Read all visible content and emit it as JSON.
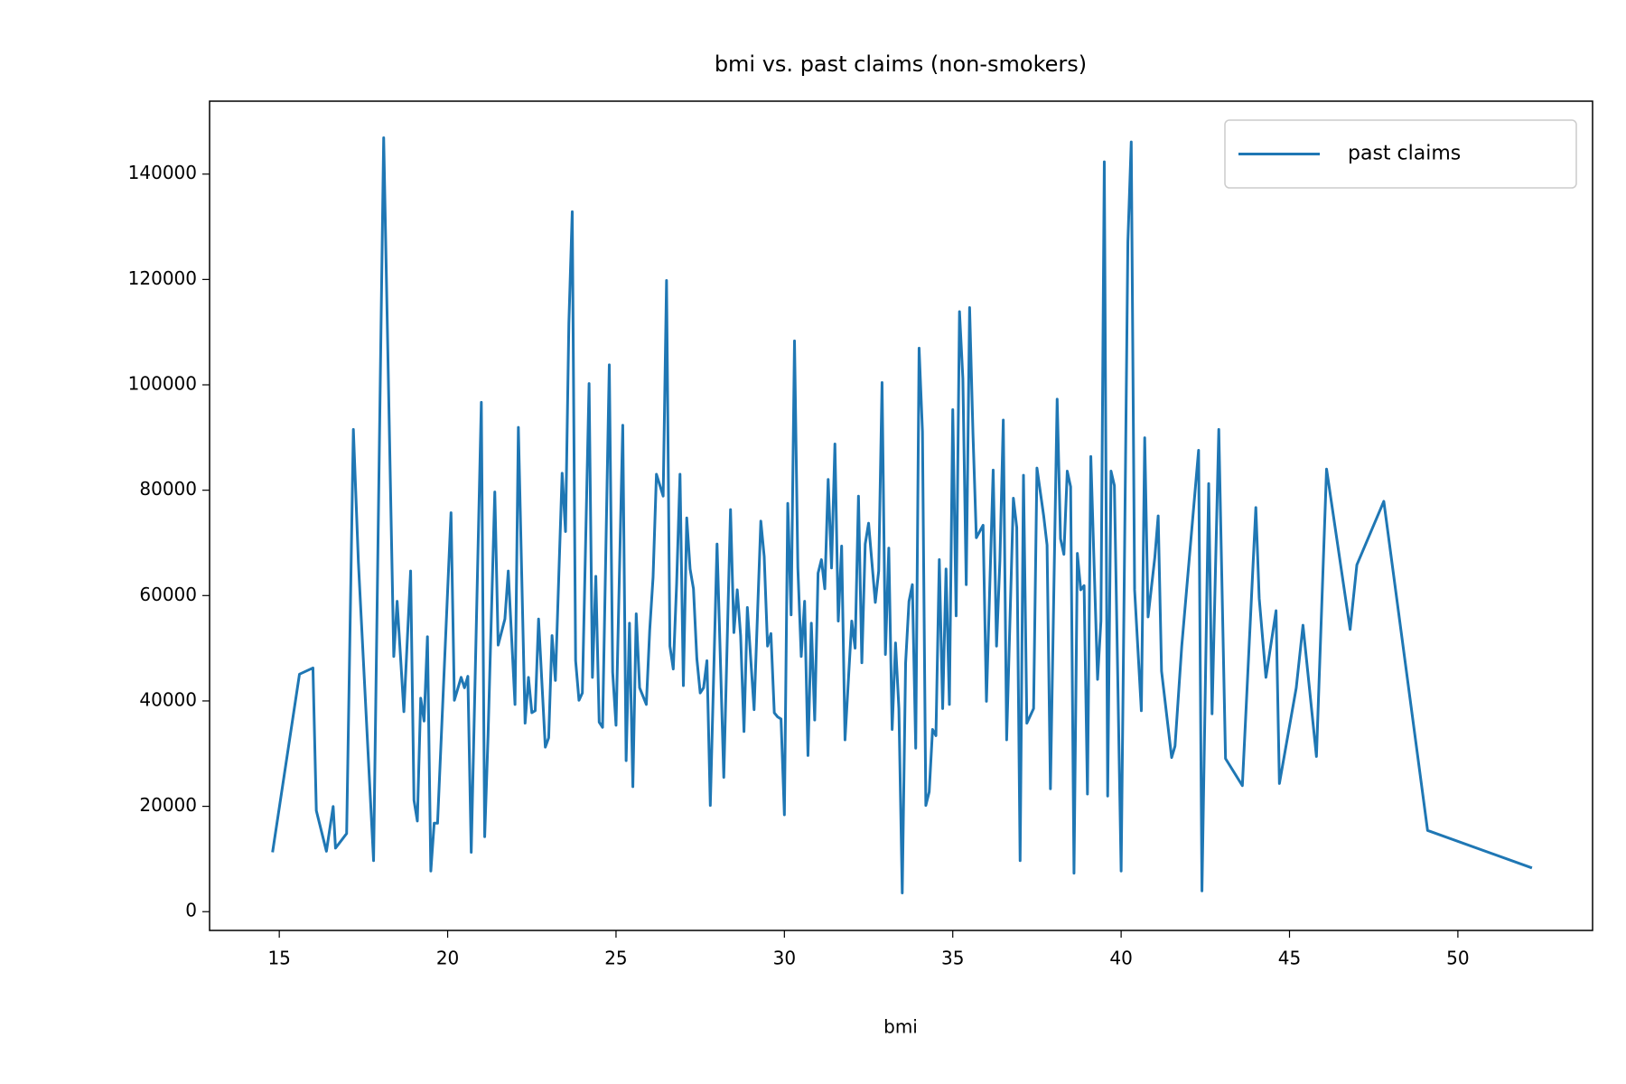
{
  "chart_data": {
    "type": "line",
    "title": "bmi vs. past claims (non-smokers)",
    "xlabel": "bmi",
    "x": [
      14.8,
      15.6,
      16.0,
      16.1,
      16.4,
      16.6,
      16.67,
      17.0,
      17.2,
      17.35,
      17.8,
      18.1,
      18.4,
      18.5,
      18.7,
      18.9,
      19.0,
      19.1,
      19.2,
      19.3,
      19.4,
      19.5,
      19.6,
      19.7,
      20.1,
      20.2,
      20.4,
      20.5,
      20.6,
      20.7,
      21.0,
      21.1,
      21.2,
      21.4,
      21.5,
      21.7,
      21.8,
      22.0,
      22.1,
      22.3,
      22.4,
      22.5,
      22.6,
      22.7,
      22.9,
      23.0,
      23.1,
      23.2,
      23.4,
      23.5,
      23.6,
      23.7,
      23.8,
      23.9,
      24.0,
      24.2,
      24.3,
      24.4,
      24.5,
      24.6,
      24.8,
      24.9,
      25.0,
      25.2,
      25.3,
      25.4,
      25.5,
      25.6,
      25.7,
      25.9,
      26.0,
      26.1,
      26.2,
      26.4,
      26.5,
      26.6,
      26.7,
      26.8,
      26.9,
      27.0,
      27.1,
      27.2,
      27.3,
      27.4,
      27.5,
      27.6,
      27.7,
      27.8,
      28.0,
      28.2,
      28.4,
      28.5,
      28.6,
      28.7,
      28.8,
      28.9,
      29.1,
      29.3,
      29.4,
      29.5,
      29.6,
      29.7,
      29.8,
      29.9,
      30.0,
      30.1,
      30.2,
      30.3,
      30.4,
      30.5,
      30.6,
      30.7,
      30.8,
      30.9,
      31.0,
      31.1,
      31.2,
      31.3,
      31.4,
      31.5,
      31.6,
      31.7,
      31.8,
      32.0,
      32.1,
      32.2,
      32.3,
      32.4,
      32.5,
      32.7,
      32.8,
      32.9,
      33.0,
      33.1,
      33.2,
      33.3,
      33.4,
      33.5,
      33.6,
      33.7,
      33.8,
      33.9,
      34.0,
      34.1,
      34.2,
      34.3,
      34.4,
      34.5,
      34.6,
      34.7,
      34.8,
      34.9,
      35.0,
      35.1,
      35.2,
      35.3,
      35.4,
      35.5,
      35.6,
      35.7,
      35.9,
      36.0,
      36.2,
      36.3,
      36.4,
      36.5,
      36.6,
      36.8,
      36.9,
      37.0,
      37.1,
      37.2,
      37.4,
      37.5,
      37.7,
      37.8,
      37.9,
      38.1,
      38.2,
      38.3,
      38.4,
      38.5,
      38.6,
      38.7,
      38.8,
      38.9,
      39.0,
      39.1,
      39.3,
      39.4,
      39.5,
      39.6,
      39.7,
      39.8,
      40.0,
      40.2,
      40.3,
      40.4,
      40.6,
      40.7,
      40.8,
      41.0,
      41.1,
      41.2,
      41.5,
      41.6,
      41.8,
      42.3,
      42.4,
      42.6,
      42.7,
      42.9,
      43.1,
      43.6,
      44.0,
      44.1,
      44.3,
      44.6,
      44.7,
      45.2,
      45.4,
      45.8,
      46.1,
      46.8,
      47.0,
      47.8,
      49.1,
      52.2
    ],
    "series": [
      {
        "name": "past claims",
        "color": "#1f77b4",
        "values": [
          11270,
          45080,
          46260,
          19180,
          11470,
          19970,
          12060,
          14830,
          91530,
          66230,
          9690,
          146900,
          48440,
          58910,
          37960,
          64650,
          21150,
          17200,
          40530,
          36180,
          52190,
          7710,
          16800,
          16800,
          75720,
          40130,
          44480,
          42500,
          44680,
          11270,
          96670,
          14230,
          33410,
          79670,
          50610,
          55550,
          64650,
          39340,
          91930,
          35780,
          44480,
          37760,
          38150,
          55550,
          31230,
          33010,
          52390,
          43890,
          83230,
          72160,
          111700,
          132850,
          47650,
          40130,
          41520,
          100230,
          44480,
          63660,
          35980,
          34990,
          103790,
          45470,
          35390,
          92320,
          28670,
          54760,
          23720,
          56540,
          42500,
          39340,
          53380,
          63460,
          83030,
          78880,
          119800,
          50410,
          46060,
          62280,
          83030,
          42900,
          74730,
          65040,
          61290,
          48040,
          41520,
          42500,
          47650,
          20170,
          69790,
          25500,
          76310,
          52980,
          61090,
          52390,
          34200,
          57730,
          38350,
          74130,
          67430,
          50410,
          52790,
          37760,
          36970,
          36570,
          18390,
          77500,
          56340,
          108340,
          65240,
          48440,
          58910,
          29650,
          54760,
          36380,
          64250,
          66820,
          61290,
          82040,
          65240,
          88770,
          55160,
          69400,
          32620,
          55160,
          50010,
          78880,
          47250,
          69790,
          73740,
          58710,
          64650,
          100430,
          48830,
          69000,
          34600,
          51000,
          38550,
          3560,
          47250,
          58910,
          62080,
          31040,
          106960,
          91140,
          20170,
          22740,
          34600,
          33410,
          66820,
          38550,
          65040,
          39340,
          95290,
          56150,
          113880,
          101220,
          62080,
          114670,
          90740,
          70980,
          73350,
          39940,
          83820,
          50410,
          66630,
          93320,
          32620,
          78490,
          72950,
          9690,
          82840,
          35780,
          38550,
          84210,
          75120,
          69590,
          23330,
          97270,
          70780,
          67820,
          83620,
          80660,
          7310,
          68010,
          61090,
          61880,
          22340,
          86390,
          44090,
          55160,
          142340,
          21950,
          83620,
          80860,
          7710,
          127120,
          146100,
          61090,
          38150,
          89950,
          55950,
          67220,
          75120,
          45670,
          29260,
          31430,
          50410,
          87580,
          3950,
          81250,
          37560,
          91530,
          29060,
          23920,
          76710,
          59500,
          44480,
          57130,
          24320,
          42500,
          54370,
          29460,
          84010,
          53570,
          65830,
          77890,
          15420,
          8300
        ]
      }
    ],
    "xlim": [
      12.93,
      54.0
    ],
    "ylim": [
      -3560,
      153840
    ],
    "xticks": [
      15,
      20,
      25,
      30,
      35,
      40,
      45,
      50
    ],
    "yticks": [
      0,
      20000,
      40000,
      60000,
      80000,
      100000,
      120000,
      140000
    ],
    "legend": "upper right"
  }
}
